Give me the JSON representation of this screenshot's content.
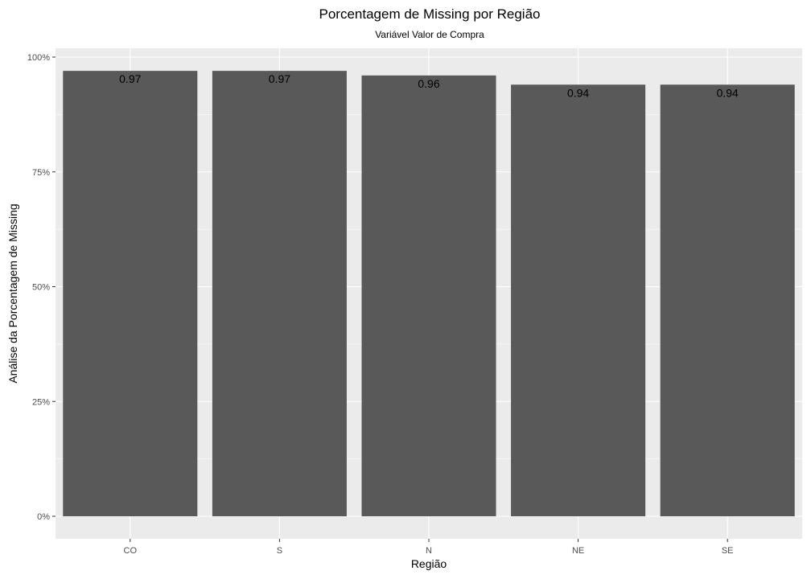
{
  "chart_data": {
    "type": "bar",
    "title": "Porcentagem de Missing por Região",
    "subtitle": "Variável Valor de Compra",
    "xlabel": "Região",
    "ylabel": "Análise da Porcentagem de Missing",
    "categories": [
      "CO",
      "S",
      "N",
      "NE",
      "SE"
    ],
    "values": [
      0.97,
      0.97,
      0.96,
      0.94,
      0.94
    ],
    "data_labels": [
      "0.97",
      "0.97",
      "0.96",
      "0.94",
      "0.94"
    ],
    "ylim": [
      0,
      1
    ],
    "yticks": [
      0,
      0.25,
      0.5,
      0.75,
      1.0
    ],
    "ytick_labels": [
      "0%",
      "25%",
      "50%",
      "75%",
      "100%"
    ],
    "grid": true,
    "legend": "none",
    "colors": {
      "bar": "#595959",
      "panel_background": "#ebebeb",
      "grid": "#ffffff"
    }
  }
}
